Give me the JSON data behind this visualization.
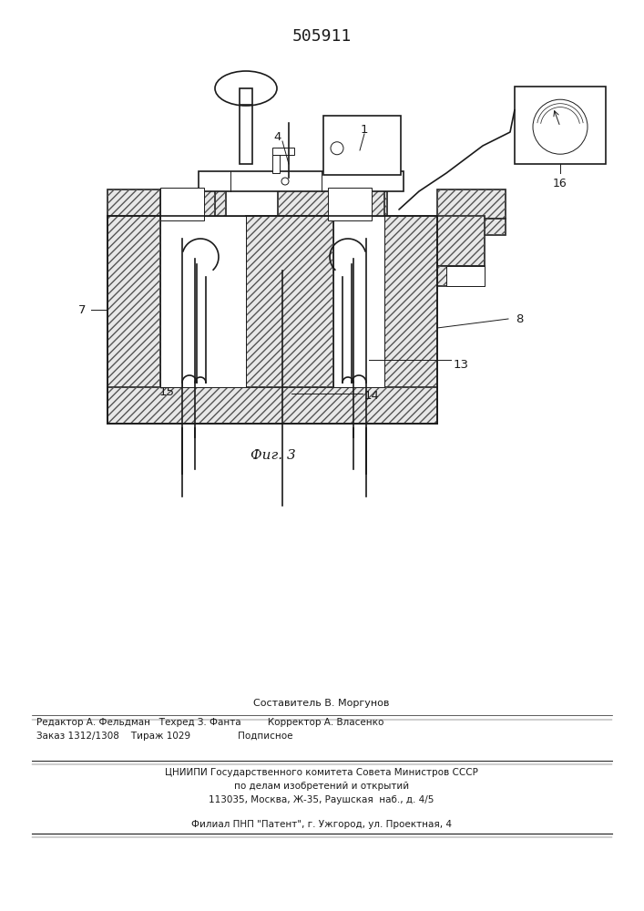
{
  "patent_number": "505911",
  "fig_caption": "Фиг. 3",
  "footer_lines": [
    "Составитель В. Моргунов",
    "Редактор А. Фельдман   Техред З. Фанта         Корректор А. Власенко",
    "Заказ 1312/1308    Тираж 1029                Подписное",
    "ЦНИИПИ Государственного комитета Совета Министров СССР",
    "по делам изобретений и открытий",
    "113035, Москва, Ж-35, Раушская  наб., д. 4/5",
    "Филиал ПНП \"Патент\", г. Ужгород, ул. Проектная, 4"
  ],
  "bg_color": "#ffffff",
  "line_color": "#1a1a1a"
}
